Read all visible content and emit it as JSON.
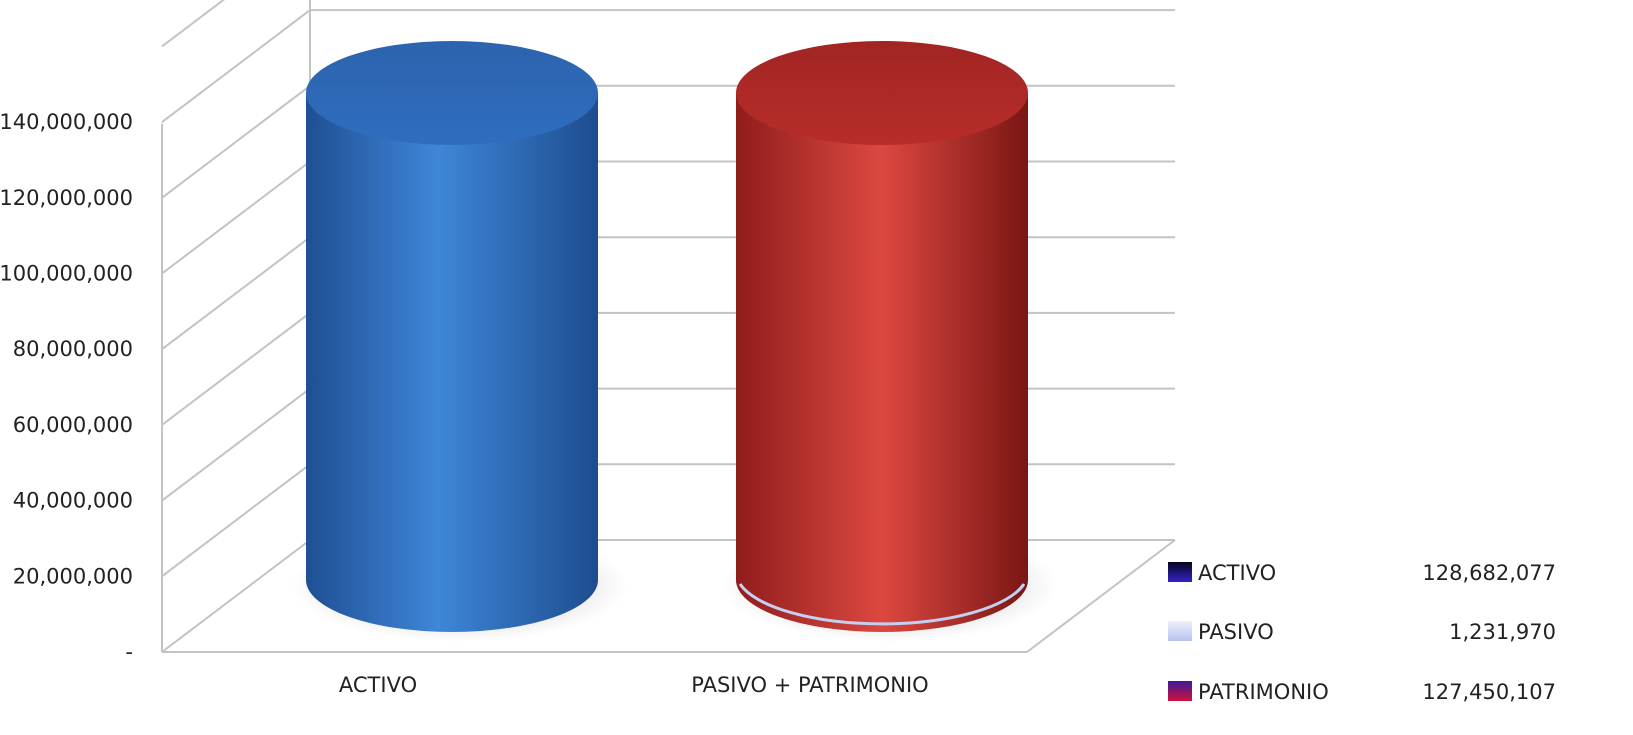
{
  "chart_data": {
    "type": "bar",
    "style": "3d-cylinder",
    "categories": [
      "ACTIVO",
      "PASIVO + PATRIMONIO"
    ],
    "series": [
      {
        "name": "ACTIVO",
        "values": [
          128682077,
          0
        ],
        "color": "#2e6bc0"
      },
      {
        "name": "PASIVO",
        "values": [
          0,
          1231970
        ],
        "color": "#c5cff2"
      },
      {
        "name": "PATRIMONIO",
        "values": [
          0,
          127450107
        ],
        "color": "#c0302d"
      }
    ],
    "stacked": true,
    "ylim": [
      0,
      140000000
    ],
    "yticks": [
      "-",
      "20,000,000",
      "40,000,000",
      "60,000,000",
      "80,000,000",
      "100,000,000",
      "120,000,000",
      "140,000,000"
    ],
    "legend": {
      "position": "bottom-right",
      "entries": [
        {
          "label": "ACTIVO",
          "value": "128,682,077",
          "color": "#1a0a8c"
        },
        {
          "label": "PASIVO",
          "value": "1,231,970",
          "color": "#c8d0f4"
        },
        {
          "label": "PATRIMONIO",
          "value": "127,450,107",
          "color": "#9a0f52"
        }
      ]
    },
    "grid": true,
    "title": "",
    "xlabel": "",
    "ylabel": ""
  }
}
